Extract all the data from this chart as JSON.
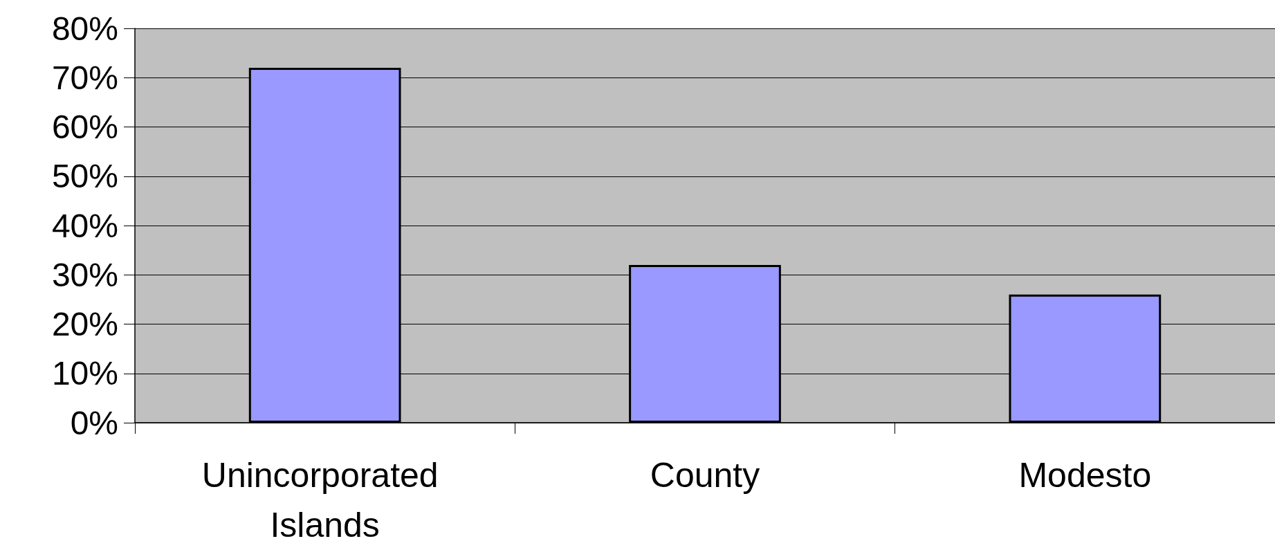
{
  "chart_data": {
    "type": "bar",
    "categories": [
      "Unincorporated Islands",
      "County",
      "Modesto"
    ],
    "values": [
      72,
      32,
      26
    ],
    "color": "#9999ff",
    "ylim": [
      0,
      80
    ],
    "yticks": [
      {
        "value": 0,
        "label": "0%"
      },
      {
        "value": 10,
        "label": "10%"
      },
      {
        "value": 20,
        "label": "20%"
      },
      {
        "value": 30,
        "label": "30%"
      },
      {
        "value": 40,
        "label": "40%"
      },
      {
        "value": 50,
        "label": "50%"
      },
      {
        "value": 60,
        "label": "60%"
      },
      {
        "value": 70,
        "label": "70%"
      },
      {
        "value": 80,
        "label": "80%"
      }
    ],
    "grid": "y"
  }
}
